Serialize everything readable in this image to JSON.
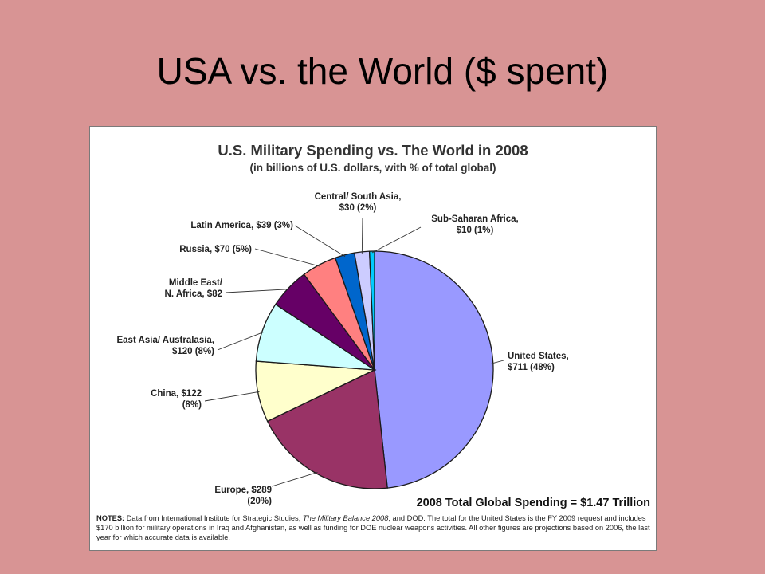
{
  "slide": {
    "title": "USA vs. the World ($ spent)"
  },
  "notes": {
    "label": "NOTES:",
    "part1": " Data from International Institute for Strategic Studies, ",
    "source_title": "The Military Balance 2008",
    "part2": ", and DOD. The total for the United States is the FY 2009 request and includes $170 billion for military operations in Iraq and Afghanistan, as well as funding for DOE nuclear weapons activities. All other figures are projections based on 2006, the last year for which accurate data is available."
  },
  "chart_data": {
    "type": "pie",
    "title": "U.S. Military Spending vs. The World in 2008",
    "subtitle": "(in billions of U.S. dollars, with % of total global)",
    "total_label": "2008 Total Global Spending = $1.47 Trillion",
    "legend": "none",
    "slices": [
      {
        "name": "United States",
        "value": 711,
        "percent": 48,
        "color": "#9999ff",
        "label_lines": [
          "United States,",
          "$711 (48%)"
        ]
      },
      {
        "name": "Europe",
        "value": 289,
        "percent": 20,
        "color": "#993366",
        "label_lines": [
          "Europe, $289",
          "(20%)"
        ]
      },
      {
        "name": "China",
        "value": 122,
        "percent": 8,
        "color": "#ffffcc",
        "label_lines": [
          "China, $122",
          "(8%)"
        ]
      },
      {
        "name": "East Asia/ Australasia",
        "value": 120,
        "percent": 8,
        "color": "#ccffff",
        "label_lines": [
          "East Asia/ Australasia,",
          "$120 (8%)"
        ]
      },
      {
        "name": "Middle East/ N. Africa",
        "value": 82,
        "color": "#660066",
        "label_lines": [
          "Middle East/",
          "N. Africa, $82"
        ]
      },
      {
        "name": "Russia",
        "value": 70,
        "percent": 5,
        "color": "#ff8080",
        "label_lines": [
          "Russia, $70 (5%)"
        ]
      },
      {
        "name": "Latin America",
        "value": 39,
        "percent": 3,
        "color": "#0066cc",
        "label_lines": [
          "Latin America, $39 (3%)"
        ]
      },
      {
        "name": "Central/ South Asia",
        "value": 30,
        "percent": 2,
        "color": "#ccccff",
        "label_lines": [
          "Central/ South Asia,",
          "$30 (2%)"
        ]
      },
      {
        "name": "Sub-Saharan Africa",
        "value": 10,
        "percent": 1,
        "color": "#00ccff",
        "label_lines": [
          "Sub-Saharan Africa,",
          "$10 (1%)"
        ]
      }
    ]
  }
}
